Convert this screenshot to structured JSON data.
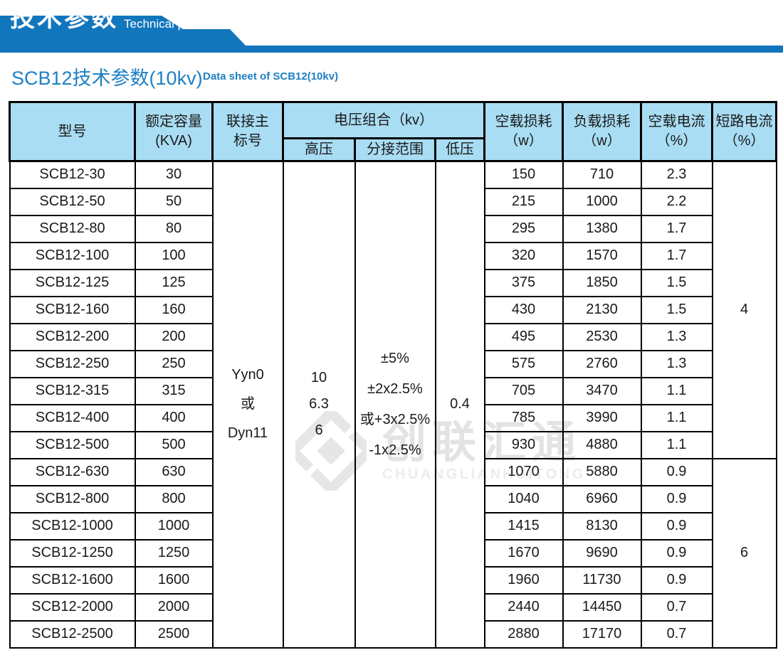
{
  "banner": {
    "title_cn": "技术参数",
    "title_en": "Technical parameter",
    "accent_color": "#1276bd"
  },
  "page": {
    "heading_cn": "SCB12技术参数(10kv)",
    "heading_en": "Data sheet of SCB12(10kv)",
    "heading_color": "#1e80c3"
  },
  "watermark": {
    "name_cn": "创联汇通",
    "name_en": "CHUANGLIANHUITONG"
  },
  "table": {
    "headers": {
      "model": "型号",
      "capacity": "额定容量\n(KVA)",
      "connection": "联接主\n标号",
      "voltage_combo": "电压组合（kv）",
      "hv": "高压",
      "tap_range": "分接范围",
      "lv": "低压",
      "no_load_loss": "空载损耗\n（w）",
      "load_loss": "负载损耗\n（w）",
      "no_load_current": "空载电流\n（%）",
      "short_circuit_current": "短路电流\n（%）"
    },
    "merged": {
      "connection": "Yyn0\n或\nDyn11",
      "hv": "10\n6.3\n6",
      "tap_range": "±5%\n±2x2.5%\n或+3x2.5%\n-1x2.5%",
      "lv": "0.4",
      "short_circuit_groups": [
        {
          "value": "4",
          "span": 11
        },
        {
          "value": "6",
          "span": 7
        }
      ]
    },
    "rows": [
      {
        "model": "SCB12-30",
        "kva": "30",
        "no_load_loss": "150",
        "load_loss": "710",
        "no_load_current": "2.3"
      },
      {
        "model": "SCB12-50",
        "kva": "50",
        "no_load_loss": "215",
        "load_loss": "1000",
        "no_load_current": "2.2"
      },
      {
        "model": "SCB12-80",
        "kva": "80",
        "no_load_loss": "295",
        "load_loss": "1380",
        "no_load_current": "1.7"
      },
      {
        "model": "SCB12-100",
        "kva": "100",
        "no_load_loss": "320",
        "load_loss": "1570",
        "no_load_current": "1.7"
      },
      {
        "model": "SCB12-125",
        "kva": "125",
        "no_load_loss": "375",
        "load_loss": "1850",
        "no_load_current": "1.5"
      },
      {
        "model": "SCB12-160",
        "kva": "160",
        "no_load_loss": "430",
        "load_loss": "2130",
        "no_load_current": "1.5"
      },
      {
        "model": "SCB12-200",
        "kva": "200",
        "no_load_loss": "495",
        "load_loss": "2530",
        "no_load_current": "1.3"
      },
      {
        "model": "SCB12-250",
        "kva": "250",
        "no_load_loss": "575",
        "load_loss": "2760",
        "no_load_current": "1.3"
      },
      {
        "model": "SCB12-315",
        "kva": "315",
        "no_load_loss": "705",
        "load_loss": "3470",
        "no_load_current": "1.1"
      },
      {
        "model": "SCB12-400",
        "kva": "400",
        "no_load_loss": "785",
        "load_loss": "3990",
        "no_load_current": "1.1"
      },
      {
        "model": "SCB12-500",
        "kva": "500",
        "no_load_loss": "930",
        "load_loss": "4880",
        "no_load_current": "1.1"
      },
      {
        "model": "SCB12-630",
        "kva": "630",
        "no_load_loss": "1070",
        "load_loss": "5880",
        "no_load_current": "0.9"
      },
      {
        "model": "SCB12-800",
        "kva": "800",
        "no_load_loss": "1040",
        "load_loss": "6960",
        "no_load_current": "0.9"
      },
      {
        "model": "SCB12-1000",
        "kva": "1000",
        "no_load_loss": "1415",
        "load_loss": "8130",
        "no_load_current": "0.9"
      },
      {
        "model": "SCB12-1250",
        "kva": "1250",
        "no_load_loss": "1670",
        "load_loss": "9690",
        "no_load_current": "0.9"
      },
      {
        "model": "SCB12-1600",
        "kva": "1600",
        "no_load_loss": "1960",
        "load_loss": "11730",
        "no_load_current": "0.9"
      },
      {
        "model": "SCB12-2000",
        "kva": "2000",
        "no_load_loss": "2440",
        "load_loss": "14450",
        "no_load_current": "0.7"
      },
      {
        "model": "SCB12-2500",
        "kva": "2500",
        "no_load_loss": "2880",
        "load_loss": "17170",
        "no_load_current": "0.7"
      }
    ]
  }
}
